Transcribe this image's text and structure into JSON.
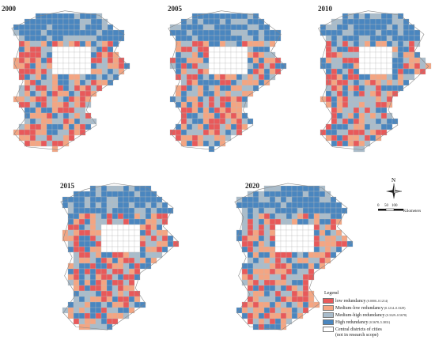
{
  "panels": [
    {
      "year": "2000"
    },
    {
      "year": "2005"
    },
    {
      "year": "2010"
    },
    {
      "year": "2015"
    },
    {
      "year": "2020"
    }
  ],
  "colors": {
    "low": "#e8595a",
    "medium_low": "#f4a582",
    "medium_high": "#a9bccb",
    "high": "#4a86bf",
    "central": "#ffffff"
  },
  "compass": {
    "north_label": "N"
  },
  "scale_bar": {
    "ticks": [
      "0",
      "50",
      "100"
    ],
    "unit": "Kilometers"
  },
  "legend": {
    "title": "Legend",
    "items": [
      {
        "label": "low redundancy",
        "range": "(0.0000–0.1214)",
        "color_key": "low"
      },
      {
        "label": "Medium-low redundancy",
        "range": "(0.1214–0.3329)",
        "color_key": "medium_low"
      },
      {
        "label": "Medium-high redundancy",
        "range": "(0.3329–0.5678)",
        "color_key": "medium_high"
      },
      {
        "label": "High redundancy",
        "range": "(0.5678–5.3831)",
        "color_key": "high"
      },
      {
        "label": "Central districts of cities",
        "range": "",
        "color_key": "central"
      }
    ],
    "note": "(not in research scope)"
  }
}
